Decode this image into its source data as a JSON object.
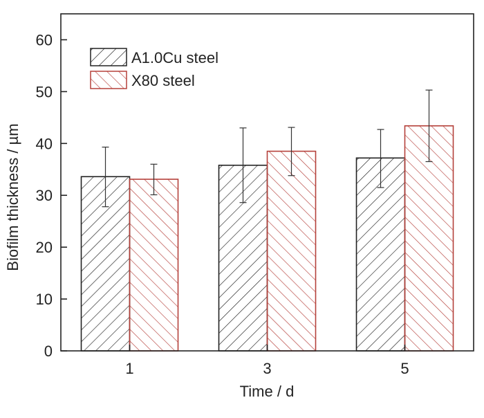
{
  "chart_data": {
    "type": "bar",
    "title": "",
    "xlabel": "Time / d",
    "ylabel": "Biofilm thickness / µm",
    "categories": [
      "1",
      "3",
      "5"
    ],
    "ylim": [
      0,
      65
    ],
    "yticks": [
      0,
      10,
      20,
      30,
      40,
      50,
      60
    ],
    "grid": false,
    "legend_position": "top-left",
    "series": [
      {
        "name": "A1.0Cu steel",
        "color": "#222222",
        "hatch": "forward",
        "values": [
          33.6,
          35.8,
          37.2
        ],
        "err_low": [
          27.8,
          28.6,
          31.5
        ],
        "err_high": [
          39.3,
          43.0,
          42.7
        ]
      },
      {
        "name": "X80 steel",
        "color": "#b5403a",
        "hatch": "backward",
        "values": [
          33.1,
          38.5,
          43.4
        ],
        "err_low": [
          30.1,
          33.8,
          36.5
        ],
        "err_high": [
          36.0,
          43.1,
          50.3
        ]
      }
    ]
  }
}
